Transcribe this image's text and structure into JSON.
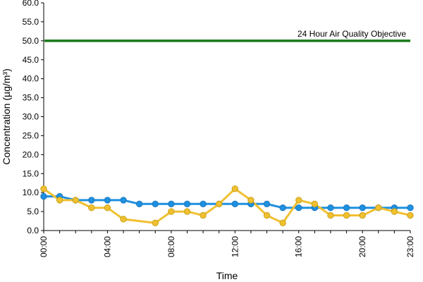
{
  "chart_data": {
    "type": "line",
    "title": "",
    "xlabel": "Time",
    "ylabel": "Concentration (µg/m³)",
    "ylim": [
      0,
      60
    ],
    "y_ticks": [
      "0.0",
      "5.0",
      "10.0",
      "15.0",
      "20.0",
      "25.0",
      "30.0",
      "35.0",
      "40.0",
      "45.0",
      "50.0",
      "55.0",
      "60.0"
    ],
    "x_ticks": [
      "00:00",
      "04:00",
      "08:00",
      "12:00",
      "16:00",
      "20:00",
      "23:00"
    ],
    "x_hours": [
      0,
      1,
      2,
      3,
      4,
      5,
      6,
      7,
      8,
      9,
      10,
      11,
      12,
      13,
      14,
      15,
      16,
      17,
      18,
      19,
      20,
      21,
      22,
      23
    ],
    "grid": false,
    "series": [
      {
        "color": "#1e90e0",
        "values": [
          9,
          9,
          8,
          8,
          8,
          8,
          7,
          7,
          7,
          7,
          7,
          7,
          7,
          7,
          7,
          6,
          6,
          6,
          6,
          6,
          6,
          6,
          6,
          6
        ]
      },
      {
        "color": "#f0c030",
        "values": [
          11,
          8,
          8,
          6,
          6,
          3,
          null,
          2,
          5,
          5,
          4,
          7,
          11,
          8,
          4,
          2,
          8,
          7,
          4,
          4,
          4,
          6,
          5,
          4
        ]
      }
    ],
    "objective": {
      "label": "24 Hour Air Quality Objective",
      "value": 50,
      "color": "#1a7a1a"
    }
  }
}
